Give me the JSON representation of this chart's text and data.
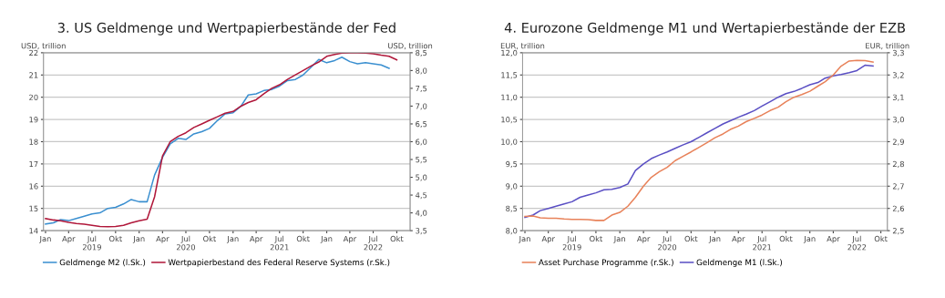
{
  "chart_data": [
    {
      "type": "line",
      "title": "3. US Geldmenge und Wertpapierbestände der Fed",
      "ylabel": "USD, trillion",
      "y2label": "USD, trillion",
      "x": [
        "2019-01",
        "2019-02",
        "2019-03",
        "2019-04",
        "2019-05",
        "2019-06",
        "2019-07",
        "2019-08",
        "2019-09",
        "2019-10",
        "2019-11",
        "2019-12",
        "2020-01",
        "2020-02",
        "2020-03",
        "2020-04",
        "2020-05",
        "2020-06",
        "2020-07",
        "2020-08",
        "2020-09",
        "2020-10",
        "2020-11",
        "2020-12",
        "2021-01",
        "2021-02",
        "2021-03",
        "2021-04",
        "2021-05",
        "2021-06",
        "2021-07",
        "2021-08",
        "2021-09",
        "2021-10",
        "2021-11",
        "2021-12",
        "2022-01",
        "2022-02",
        "2022-03",
        "2022-04",
        "2022-05",
        "2022-06",
        "2022-07",
        "2022-08",
        "2022-09"
      ],
      "series": [
        {
          "name": "Geldmenge M2 (l.Sk.)",
          "color": "#3a8fd0",
          "values": [
            14.3,
            14.35,
            14.5,
            14.45,
            14.55,
            14.65,
            14.75,
            14.8,
            15.0,
            15.05,
            15.2,
            15.4,
            15.3,
            15.3,
            16.5,
            17.3,
            17.9,
            18.15,
            18.1,
            18.35,
            18.45,
            18.6,
            18.95,
            19.25,
            19.3,
            19.6,
            20.1,
            20.15,
            20.3,
            20.35,
            20.5,
            20.75,
            20.8,
            21.0,
            21.35,
            21.7,
            21.55,
            21.65,
            21.8,
            21.6,
            21.5,
            21.55,
            21.5,
            21.45,
            21.3
          ]
        },
        {
          "name": "Wertpapierbestand des Federal Reserve Systems (r.Sk.)",
          "color": "#b0173a",
          "axis": "y2",
          "x": [
            "2019-01",
            "2019-02",
            "2019-03",
            "2019-04",
            "2019-05",
            "2019-06",
            "2019-07",
            "2019-08",
            "2019-09",
            "2019-10",
            "2019-11",
            "2019-12",
            "2020-01",
            "2020-02",
            "2020-03",
            "2020-04",
            "2020-05",
            "2020-06",
            "2020-07",
            "2020-08",
            "2020-09",
            "2020-10",
            "2020-11",
            "2020-12",
            "2021-01",
            "2021-02",
            "2021-03",
            "2021-04",
            "2021-05",
            "2021-06",
            "2021-07",
            "2021-08",
            "2021-09",
            "2021-10",
            "2021-11",
            "2021-12",
            "2022-01",
            "2022-02",
            "2022-03",
            "2022-04",
            "2022-05",
            "2022-06",
            "2022-07",
            "2022-08",
            "2022-09",
            "2022-10"
          ],
          "values": [
            3.84,
            3.8,
            3.78,
            3.73,
            3.7,
            3.68,
            3.65,
            3.62,
            3.61,
            3.62,
            3.65,
            3.72,
            3.78,
            3.82,
            4.45,
            5.6,
            6.0,
            6.15,
            6.25,
            6.4,
            6.5,
            6.6,
            6.7,
            6.8,
            6.85,
            7.0,
            7.1,
            7.18,
            7.35,
            7.5,
            7.6,
            7.75,
            7.88,
            8.0,
            8.13,
            8.24,
            8.4,
            8.45,
            8.49,
            8.5,
            8.5,
            8.49,
            8.47,
            8.43,
            8.4,
            8.3
          ]
        }
      ],
      "xlim": [
        "2018-12-24",
        "2022-11-22"
      ],
      "xticks": [
        {
          "value": "2019-01-01",
          "label": "Jan"
        },
        {
          "value": "2019-04-01",
          "label": "Apr"
        },
        {
          "value": "2019-07-01",
          "label": "Jul\n2019"
        },
        {
          "value": "2019-10-01",
          "label": "Okt"
        },
        {
          "value": "2020-01-01",
          "label": "Jan"
        },
        {
          "value": "2020-04-01",
          "label": "Apr"
        },
        {
          "value": "2020-07-01",
          "label": "Jul\n2020"
        },
        {
          "value": "2020-10-01",
          "label": "Okt"
        },
        {
          "value": "2021-01-01",
          "label": "Jan"
        },
        {
          "value": "2021-04-01",
          "label": "Apr"
        },
        {
          "value": "2021-07-01",
          "label": "Jul\n2021"
        },
        {
          "value": "2021-10-01",
          "label": "Okt"
        },
        {
          "value": "2022-01-01",
          "label": "Jan"
        },
        {
          "value": "2022-04-01",
          "label": "Apr"
        },
        {
          "value": "2022-07-01",
          "label": "Jul\n2022"
        },
        {
          "value": "2022-10-01",
          "label": "Okt"
        }
      ],
      "ylim": [
        14,
        22
      ],
      "yticks": [
        14,
        15,
        16,
        17,
        18,
        19,
        20,
        21,
        22
      ],
      "y2lim": [
        3.5,
        8.5
      ],
      "y2ticks": [
        {
          "value": 3.5,
          "label": "3,5"
        },
        {
          "value": 4.0,
          "label": "4,0"
        },
        {
          "value": 4.5,
          "label": "4,5"
        },
        {
          "value": 5.0,
          "label": "5,0"
        },
        {
          "value": 5.5,
          "label": "5,5"
        },
        {
          "value": 6.0,
          "label": "6,0"
        },
        {
          "value": 6.5,
          "label": "6,5"
        },
        {
          "value": 7.0,
          "label": "7,0"
        },
        {
          "value": 7.5,
          "label": "7,5"
        },
        {
          "value": 8.0,
          "label": "8,0"
        },
        {
          "value": 8.5,
          "label": "8,5"
        }
      ],
      "grid": "y",
      "legend": "bottom left",
      "line_style": "solid",
      "marker": "none"
    },
    {
      "type": "line",
      "title": "4. Eurozone Geldmenge M1 und Wertapierbestände der EZB",
      "ylabel": "EUR, trillion",
      "y2label": "EUR, trillion",
      "x": [
        "2019-01",
        "2019-02",
        "2019-03",
        "2019-04",
        "2019-05",
        "2019-06",
        "2019-07",
        "2019-08",
        "2019-09",
        "2019-10",
        "2019-11",
        "2019-12",
        "2020-01",
        "2020-02",
        "2020-03",
        "2020-04",
        "2020-05",
        "2020-06",
        "2020-07",
        "2020-08",
        "2020-09",
        "2020-10",
        "2020-11",
        "2020-12",
        "2021-01",
        "2021-02",
        "2021-03",
        "2021-04",
        "2021-05",
        "2021-06",
        "2021-07",
        "2021-08",
        "2021-09",
        "2021-10",
        "2021-11",
        "2021-12",
        "2022-01",
        "2022-02",
        "2022-03",
        "2022-04",
        "2022-05",
        "2022-06",
        "2022-07",
        "2022-08",
        "2022-09"
      ],
      "series": [
        {
          "name": "Asset Purchase Programme (r.Sk.)",
          "color": "#e8825a",
          "axis": "y2",
          "values": [
            2.564,
            2.566,
            2.558,
            2.556,
            2.556,
            2.553,
            2.551,
            2.551,
            2.55,
            2.546,
            2.546,
            2.57,
            2.582,
            2.61,
            2.65,
            2.7,
            2.74,
            2.765,
            2.785,
            2.815,
            2.835,
            2.854,
            2.875,
            2.895,
            2.918,
            2.935,
            2.955,
            2.97,
            2.99,
            3.005,
            3.02,
            3.04,
            3.055,
            3.08,
            3.1,
            3.112,
            3.127,
            3.15,
            3.17,
            3.2,
            3.24,
            3.263,
            3.266,
            3.265,
            3.258
          ]
        },
        {
          "name": "Geldmenge M1 (l.Sk.)",
          "color": "#5a4fc4",
          "values": [
            8.3,
            8.35,
            8.45,
            8.5,
            8.55,
            8.6,
            8.65,
            8.75,
            8.8,
            8.85,
            8.92,
            8.93,
            8.97,
            9.05,
            9.35,
            9.5,
            9.62,
            9.7,
            9.77,
            9.85,
            9.93,
            10.0,
            10.1,
            10.2,
            10.3,
            10.4,
            10.47,
            10.55,
            10.62,
            10.7,
            10.8,
            10.9,
            11.0,
            11.08,
            11.13,
            11.2,
            11.28,
            11.33,
            11.43,
            11.48,
            11.51,
            11.55,
            11.6,
            11.72,
            11.7
          ]
        }
      ],
      "xlim": [
        "2018-12-23",
        "2022-10-26"
      ],
      "xticks": [
        {
          "value": "2019-01-01",
          "label": "Jan"
        },
        {
          "value": "2019-04-01",
          "label": "Apr"
        },
        {
          "value": "2019-07-01",
          "label": "Jul\n2019"
        },
        {
          "value": "2019-10-01",
          "label": "Okt"
        },
        {
          "value": "2020-01-01",
          "label": "Jan"
        },
        {
          "value": "2020-04-01",
          "label": "Apr"
        },
        {
          "value": "2020-07-01",
          "label": "Jul\n2020"
        },
        {
          "value": "2020-10-01",
          "label": "Okt"
        },
        {
          "value": "2021-01-01",
          "label": "Jan"
        },
        {
          "value": "2021-04-01",
          "label": "Apr"
        },
        {
          "value": "2021-07-01",
          "label": "Jul\n2021"
        },
        {
          "value": "2021-10-01",
          "label": "Okt"
        },
        {
          "value": "2022-01-01",
          "label": "Jan"
        },
        {
          "value": "2022-04-01",
          "label": "Apr"
        },
        {
          "value": "2022-07-01",
          "label": "Jul\n2022"
        },
        {
          "value": "2022-10-01",
          "label": "Okt"
        }
      ],
      "ylim": [
        8.0,
        12.0
      ],
      "yticks": [
        {
          "value": 8.0,
          "label": "8,0"
        },
        {
          "value": 8.5,
          "label": "8,5"
        },
        {
          "value": 9.0,
          "label": "9,0"
        },
        {
          "value": 9.5,
          "label": "9,5"
        },
        {
          "value": 10.0,
          "label": "10,0"
        },
        {
          "value": 10.5,
          "label": "10,5"
        },
        {
          "value": 11.0,
          "label": "11,0"
        },
        {
          "value": 11.5,
          "label": "11,5"
        },
        {
          "value": 12.0,
          "label": "12,0"
        }
      ],
      "y2lim": [
        2.5,
        3.3
      ],
      "y2ticks": [
        {
          "value": 2.5,
          "label": "2,5"
        },
        {
          "value": 2.6,
          "label": "2,6"
        },
        {
          "value": 2.7,
          "label": "2,7"
        },
        {
          "value": 2.8,
          "label": "2,8"
        },
        {
          "value": 2.9,
          "label": "2,9"
        },
        {
          "value": 3.0,
          "label": "3,0"
        },
        {
          "value": 3.1,
          "label": "3,1"
        },
        {
          "value": 3.2,
          "label": "3,2"
        },
        {
          "value": 3.3,
          "label": "3,3"
        }
      ],
      "grid": "y",
      "legend": "bottom left",
      "line_style": "solid",
      "marker": "none"
    }
  ]
}
